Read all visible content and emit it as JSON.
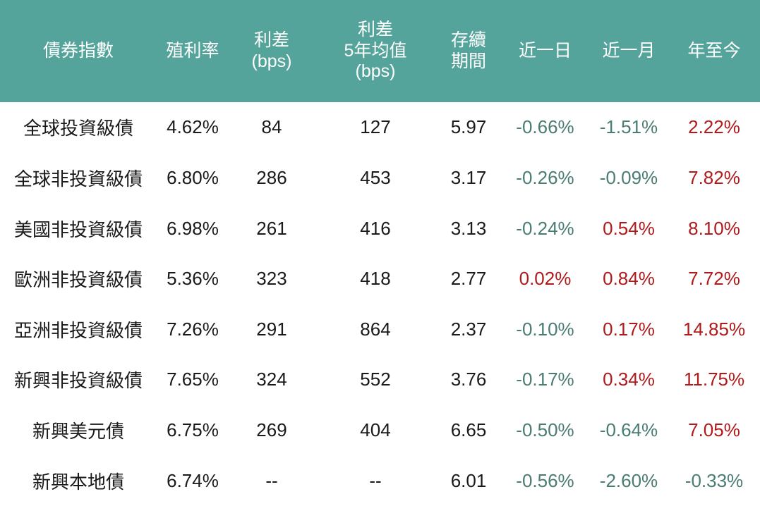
{
  "chart_data": {
    "type": "table",
    "columns": [
      {
        "id": "index",
        "label": "債券指數"
      },
      {
        "id": "yield",
        "label": "殖利率"
      },
      {
        "id": "spread",
        "label": "利差\n(bps)"
      },
      {
        "id": "spread_5y_avg",
        "label": "利差\n5年均值\n(bps)"
      },
      {
        "id": "duration",
        "label": "存續\n期間"
      },
      {
        "id": "one_day",
        "label": "近一日"
      },
      {
        "id": "one_month",
        "label": "近一月"
      },
      {
        "id": "ytd",
        "label": "年至今"
      }
    ],
    "change_column_ids": [
      "one_day",
      "one_month",
      "ytd"
    ],
    "rows": [
      {
        "index": "全球投資級債",
        "yield": "4.62%",
        "spread": "84",
        "spread_5y_avg": "127",
        "duration": "5.97",
        "one_day": "-0.66%",
        "one_month": "-1.51%",
        "ytd": "2.22%"
      },
      {
        "index": "全球非投資級債",
        "yield": "6.80%",
        "spread": "286",
        "spread_5y_avg": "453",
        "duration": "3.17",
        "one_day": "-0.26%",
        "one_month": "-0.09%",
        "ytd": "7.82%"
      },
      {
        "index": "美國非投資級債",
        "yield": "6.98%",
        "spread": "261",
        "spread_5y_avg": "416",
        "duration": "3.13",
        "one_day": "-0.24%",
        "one_month": "0.54%",
        "ytd": "8.10%"
      },
      {
        "index": "歐洲非投資級債",
        "yield": "5.36%",
        "spread": "323",
        "spread_5y_avg": "418",
        "duration": "2.77",
        "one_day": "0.02%",
        "one_month": "0.84%",
        "ytd": "7.72%"
      },
      {
        "index": "亞洲非投資級債",
        "yield": "7.26%",
        "spread": "291",
        "spread_5y_avg": "864",
        "duration": "2.37",
        "one_day": "-0.10%",
        "one_month": "0.17%",
        "ytd": "14.85%"
      },
      {
        "index": "新興非投資級債",
        "yield": "7.65%",
        "spread": "324",
        "spread_5y_avg": "552",
        "duration": "3.76",
        "one_day": "-0.17%",
        "one_month": "0.34%",
        "ytd": "11.75%"
      },
      {
        "index": "新興美元債",
        "yield": "6.75%",
        "spread": "269",
        "spread_5y_avg": "404",
        "duration": "6.65",
        "one_day": "-0.50%",
        "one_month": "-0.64%",
        "ytd": "7.05%"
      },
      {
        "index": "新興本地債",
        "yield": "6.74%",
        "spread": "--",
        "spread_5y_avg": "--",
        "duration": "6.01",
        "one_day": "-0.56%",
        "one_month": "-2.60%",
        "ytd": "-0.33%"
      }
    ]
  },
  "colors": {
    "header_bg": "#55a49b",
    "header_text": "#ffffff",
    "body_text": "#1a1a1a",
    "negative": "#4a7c74",
    "positive": "#b01a1a",
    "page_bg": "#ffffff"
  }
}
